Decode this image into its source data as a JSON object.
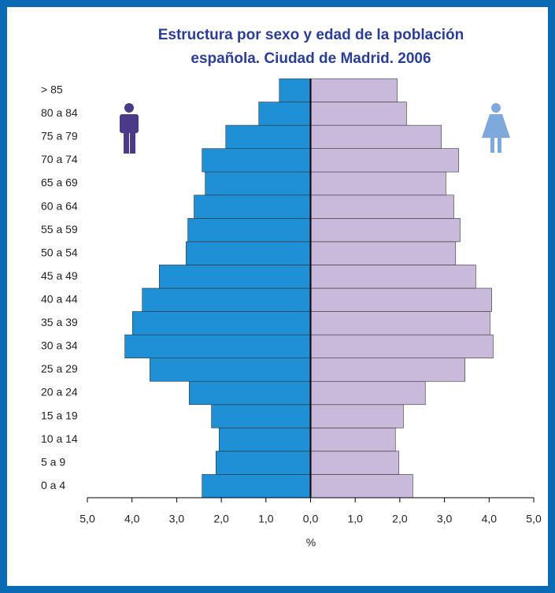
{
  "chart_data": {
    "type": "pyramid",
    "title": [
      "Estructura por sexo y edad de la población",
      "española. Ciudad de Madrid. 2006"
    ],
    "xlabel": "%",
    "categories": [
      "0 a 4",
      "5 a 9",
      "10 a 14",
      "15 a 19",
      "20 a 24",
      "25 a 29",
      "30 a 34",
      "35 a 39",
      "40 a 44",
      "45 a 49",
      "50 a 54",
      "55 a 59",
      "60 a 64",
      "65 a 69",
      "70 a 74",
      "75 a 79",
      "80 a 84",
      "> 85"
    ],
    "series": [
      {
        "color": "#1f8fd6",
        "values": [
          -2.43,
          -2.12,
          -2.05,
          -2.22,
          -2.72,
          -3.6,
          -4.16,
          -3.99,
          -3.77,
          -3.39,
          -2.79,
          -2.75,
          -2.61,
          -2.36,
          -2.43,
          -1.9,
          -1.16,
          -0.7
        ]
      },
      {
        "color": "#c9badc",
        "values": [
          2.29,
          1.98,
          1.9,
          2.08,
          2.57,
          3.46,
          4.09,
          4.02,
          4.06,
          3.7,
          3.25,
          3.35,
          3.21,
          3.03,
          3.32,
          2.93,
          2.15,
          1.94
        ]
      }
    ],
    "xlim": [
      -5,
      5
    ],
    "xticks": [
      {
        "value": -5,
        "label": "5,0"
      },
      {
        "value": -4,
        "label": "4,0"
      },
      {
        "value": -3,
        "label": "3,0"
      },
      {
        "value": -2,
        "label": "2,0"
      },
      {
        "value": -1,
        "label": "1,0"
      },
      {
        "value": 0,
        "label": "0,0"
      },
      {
        "value": 1,
        "label": "1,0"
      },
      {
        "value": 2,
        "label": "2,0"
      },
      {
        "value": 3,
        "label": "3,0"
      },
      {
        "value": 4,
        "label": "4,0"
      },
      {
        "value": 5,
        "label": "5,0"
      }
    ]
  }
}
